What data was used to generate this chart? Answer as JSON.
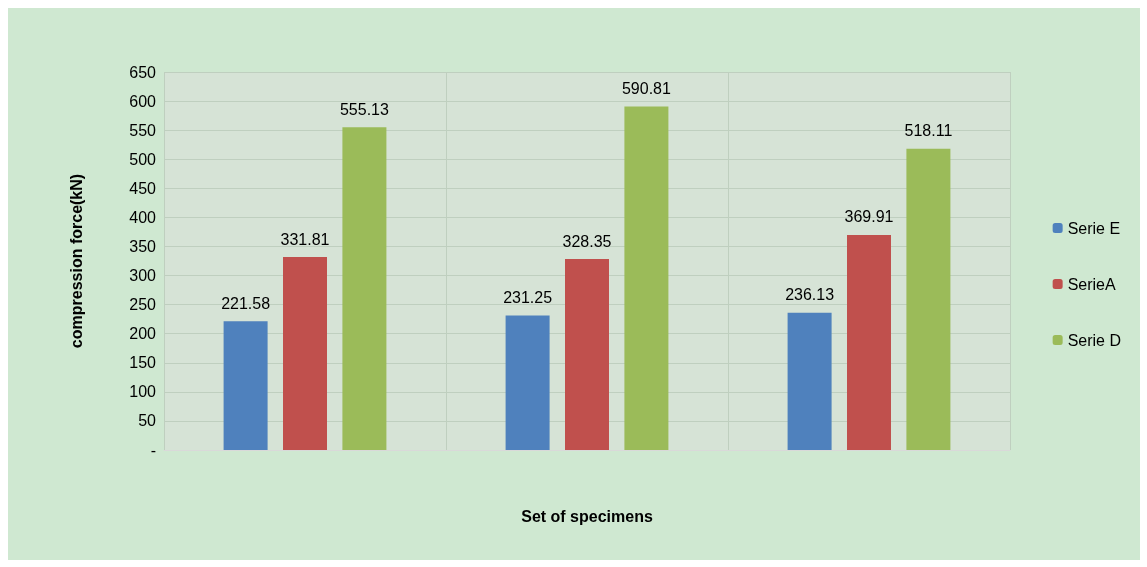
{
  "chart_data": {
    "type": "bar",
    "xlabel": "Set of specimens",
    "ylabel": "compression force(kN)",
    "categories": [
      null,
      null,
      null
    ],
    "series": [
      {
        "name": "Serie E",
        "color": "#4f81bd",
        "values": [
          221.58,
          231.25,
          236.13
        ]
      },
      {
        "name": "SerieA",
        "color": "#c0504d",
        "values": [
          331.81,
          328.35,
          369.91
        ]
      },
      {
        "name": "Serie D",
        "color": "#9bbb59",
        "values": [
          555.13,
          590.81,
          518.11
        ]
      }
    ],
    "ylim": [
      0,
      650
    ],
    "yticks": [
      {
        "value": 0,
        "label": "-"
      },
      50,
      100,
      150,
      200,
      250,
      300,
      350,
      400,
      450,
      500,
      550,
      600,
      650
    ],
    "data_labels": true,
    "grid": true,
    "legend": "right"
  }
}
